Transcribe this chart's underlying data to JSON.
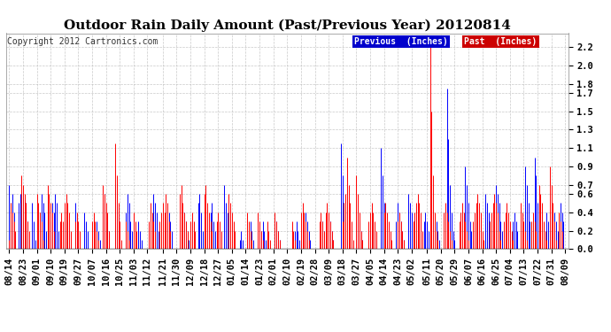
{
  "title": "Outdoor Rain Daily Amount (Past/Previous Year) 20120814",
  "copyright_text": "Copyright 2012 Cartronics.com",
  "legend_previous": "Previous  (Inches)",
  "legend_past": "Past  (Inches)",
  "previous_color": "#0000ff",
  "past_color": "#ff0000",
  "previous_legend_bg": "#0000cc",
  "past_legend_bg": "#cc0000",
  "yticks": [
    0.0,
    0.2,
    0.4,
    0.6,
    0.7,
    0.9,
    1.1,
    1.3,
    1.5,
    1.7,
    1.8,
    2.0,
    2.2
  ],
  "ylim": [
    0.0,
    2.35
  ],
  "background_color": "#ffffff",
  "grid_color": "#bbbbbb",
  "title_fontsize": 11,
  "tick_fontsize": 7.5,
  "x_tick_labels": [
    "08/14",
    "08/23",
    "09/01",
    "09/10",
    "09/19",
    "09/27",
    "10/07",
    "10/16",
    "10/25",
    "11/03",
    "11/12",
    "11/21",
    "11/30",
    "12/09",
    "12/18",
    "12/27",
    "01/05",
    "01/14",
    "01/23",
    "02/01",
    "02/10",
    "02/19",
    "02/28",
    "03/09",
    "03/18",
    "03/27",
    "04/05",
    "04/14",
    "04/23",
    "05/02",
    "05/11",
    "05/20",
    "05/29",
    "06/07",
    "06/16",
    "06/25",
    "07/04",
    "07/13",
    "07/22",
    "07/31",
    "08/09"
  ],
  "prev_rain": [
    0.7,
    0.5,
    0.6,
    0.4,
    0.1,
    0.0,
    0.5,
    0.6,
    0.5,
    0.3,
    0.1,
    0.5,
    0.3,
    0.1,
    0.0,
    0.5,
    0.3,
    0.1,
    0.0,
    0.0,
    0.4,
    0.6,
    0.5,
    0.4,
    0.2,
    0.0,
    0.0,
    0.3,
    0.5,
    0.4,
    0.6,
    0.5,
    0.2,
    0.1,
    0.0,
    0.0,
    0.3,
    0.4,
    0.3,
    0.2,
    0.0,
    0.0,
    0.0,
    0.5,
    0.3,
    0.2,
    0.0,
    0.0,
    0.0,
    0.4,
    0.3,
    0.2,
    0.0,
    0.0,
    0.0,
    0.0,
    0.0,
    0.3,
    0.2,
    0.1,
    0.0,
    0.5,
    0.6,
    0.4,
    0.3,
    0.2,
    0.0,
    0.0,
    0.0,
    0.7,
    0.5,
    0.4,
    0.2,
    0.0,
    0.0,
    0.0,
    0.4,
    0.6,
    0.5,
    0.3,
    0.2,
    0.0,
    0.0,
    0.0,
    0.3,
    0.2,
    0.1,
    0.0,
    0.0,
    0.0,
    0.0,
    0.0,
    0.0,
    0.0,
    0.6,
    0.5,
    0.4,
    0.2,
    0.0,
    0.0,
    0.0,
    0.0,
    0.0,
    0.3,
    0.4,
    0.3,
    0.2,
    0.0,
    0.0,
    0.0,
    0.0,
    0.0,
    0.0,
    0.2,
    0.4,
    0.3,
    0.2,
    0.1,
    0.0,
    0.0,
    0.0,
    0.0,
    0.0,
    0.5,
    0.6,
    0.4,
    0.2,
    0.0,
    0.0,
    0.0,
    0.0,
    0.4,
    0.5,
    0.3,
    0.2,
    0.0,
    0.0,
    0.0,
    0.0,
    0.0,
    0.7,
    0.5,
    0.4,
    0.2,
    0.0,
    0.0,
    0.0,
    0.0,
    0.0,
    0.0,
    0.1,
    0.2,
    0.1,
    0.0,
    0.0,
    0.0,
    0.2,
    0.3,
    0.2,
    0.1,
    0.0,
    0.0,
    0.0,
    0.0,
    0.2,
    0.3,
    0.2,
    0.1,
    0.0,
    0.0,
    0.0,
    0.0,
    0.0,
    0.2,
    0.3,
    0.2,
    0.1,
    0.0,
    0.0,
    0.0,
    0.0,
    0.0,
    0.0,
    0.0,
    0.0,
    0.0,
    0.2,
    0.3,
    0.2,
    0.1,
    0.0,
    0.0,
    0.3,
    0.4,
    0.3,
    0.2,
    0.1,
    0.0,
    0.0,
    0.0,
    0.0,
    0.0,
    0.0,
    0.0,
    0.3,
    0.2,
    0.1,
    0.0,
    0.2,
    0.3,
    0.2,
    0.1,
    0.0,
    0.0,
    0.0,
    0.0,
    1.15,
    0.8,
    0.5,
    0.3,
    0.1,
    0.0,
    0.0,
    0.0,
    0.0,
    0.0,
    0.3,
    0.4,
    0.3,
    0.2,
    0.1,
    0.0,
    0.0,
    0.0,
    0.0,
    0.3,
    0.4,
    0.3,
    0.2,
    0.1,
    0.0,
    0.0,
    1.1,
    0.8,
    0.5,
    0.3,
    0.1,
    0.0,
    0.0,
    0.0,
    0.0,
    0.0,
    0.3,
    0.5,
    0.4,
    0.3,
    0.2,
    0.1,
    0.0,
    0.0,
    0.6,
    0.5,
    0.4,
    0.3,
    0.2,
    0.1,
    0.0,
    0.0,
    0.0,
    0.0,
    0.3,
    0.4,
    0.3,
    0.2,
    0.1,
    0.0,
    0.0,
    0.0,
    0.3,
    0.2,
    0.1,
    0.0,
    0.0,
    0.0,
    0.0,
    1.75,
    1.2,
    0.7,
    0.4,
    0.2,
    0.1,
    0.0,
    0.0,
    0.0,
    0.0,
    0.0,
    0.0,
    0.9,
    0.7,
    0.5,
    0.3,
    0.2,
    0.1,
    0.0,
    0.4,
    0.3,
    0.2,
    0.1,
    0.0,
    0.0,
    0.6,
    0.5,
    0.4,
    0.3,
    0.2,
    0.0,
    0.0,
    0.7,
    0.6,
    0.5,
    0.3,
    0.2,
    0.0,
    0.0,
    0.3,
    0.2,
    0.1,
    0.0,
    0.3,
    0.4,
    0.3,
    0.2,
    0.0,
    0.0,
    0.0,
    0.0,
    0.9,
    0.7,
    0.5,
    0.3,
    0.1,
    0.0,
    1.0,
    0.8,
    0.5,
    0.3,
    0.1,
    0.0,
    0.0,
    0.0,
    0.4,
    0.3,
    0.2,
    0.0,
    0.0,
    0.4,
    0.3,
    0.2,
    0.0,
    0.5,
    0.4,
    0.3,
    0.0
  ],
  "past_rain": [
    0.1,
    0.5,
    0.4,
    0.3,
    0.2,
    0.0,
    0.0,
    0.0,
    0.8,
    0.7,
    0.6,
    0.5,
    0.3,
    0.2,
    0.0,
    0.0,
    0.0,
    0.0,
    0.6,
    0.5,
    0.4,
    0.3,
    0.1,
    0.0,
    0.0,
    0.7,
    0.6,
    0.5,
    0.4,
    0.2,
    0.0,
    0.0,
    0.0,
    0.3,
    0.4,
    0.3,
    0.5,
    0.6,
    0.5,
    0.4,
    0.2,
    0.0,
    0.0,
    0.3,
    0.4,
    0.3,
    0.2,
    0.0,
    0.0,
    0.0,
    0.0,
    0.0,
    0.0,
    0.0,
    0.3,
    0.4,
    0.3,
    0.2,
    0.1,
    0.0,
    0.0,
    0.7,
    0.6,
    0.5,
    0.4,
    0.2,
    0.0,
    0.0,
    0.0,
    1.15,
    0.8,
    0.5,
    0.3,
    0.1,
    0.0,
    0.0,
    0.3,
    0.2,
    0.1,
    0.0,
    0.0,
    0.4,
    0.3,
    0.2,
    0.0,
    0.0,
    0.0,
    0.0,
    0.0,
    0.0,
    0.0,
    0.3,
    0.5,
    0.4,
    0.3,
    0.2,
    0.0,
    0.0,
    0.3,
    0.4,
    0.5,
    0.4,
    0.6,
    0.5,
    0.3,
    0.2,
    0.0,
    0.0,
    0.0,
    0.0,
    0.0,
    0.6,
    0.7,
    0.5,
    0.4,
    0.3,
    0.2,
    0.0,
    0.3,
    0.4,
    0.3,
    0.2,
    0.0,
    0.0,
    0.0,
    0.0,
    0.0,
    0.6,
    0.7,
    0.5,
    0.4,
    0.3,
    0.2,
    0.0,
    0.0,
    0.3,
    0.4,
    0.3,
    0.2,
    0.0,
    0.0,
    0.0,
    0.0,
    0.6,
    0.5,
    0.4,
    0.3,
    0.2,
    0.0,
    0.0,
    0.0,
    0.0,
    0.0,
    0.0,
    0.0,
    0.4,
    0.3,
    0.2,
    0.1,
    0.0,
    0.0,
    0.0,
    0.4,
    0.3,
    0.2,
    0.1,
    0.0,
    0.0,
    0.3,
    0.2,
    0.1,
    0.0,
    0.0,
    0.4,
    0.3,
    0.2,
    0.1,
    0.0,
    0.0,
    0.0,
    0.0,
    0.0,
    0.0,
    0.0,
    0.3,
    0.2,
    0.1,
    0.0,
    0.0,
    0.0,
    0.4,
    0.5,
    0.4,
    0.3,
    0.2,
    0.1,
    0.0,
    0.0,
    0.0,
    0.0,
    0.0,
    0.0,
    0.3,
    0.4,
    0.3,
    0.2,
    0.4,
    0.5,
    0.4,
    0.3,
    0.2,
    0.1,
    0.0,
    0.0,
    0.0,
    0.0,
    0.0,
    0.3,
    0.5,
    0.6,
    1.0,
    0.7,
    0.5,
    0.3,
    0.1,
    0.0,
    0.8,
    0.6,
    0.4,
    0.2,
    0.1,
    0.0,
    0.0,
    0.0,
    0.3,
    0.4,
    0.5,
    0.4,
    0.3,
    0.2,
    0.0,
    0.0,
    0.0,
    0.0,
    0.4,
    0.5,
    0.4,
    0.3,
    0.2,
    0.1,
    0.0,
    0.0,
    0.0,
    0.3,
    0.4,
    0.3,
    0.2,
    0.1,
    0.0,
    0.0,
    0.0,
    0.0,
    0.0,
    0.3,
    0.4,
    0.5,
    0.6,
    0.5,
    0.4,
    0.2,
    0.0,
    0.0,
    0.0,
    0.0,
    2.2,
    1.5,
    0.8,
    0.4,
    0.2,
    0.1,
    0.0,
    0.0,
    0.0,
    0.4,
    0.5,
    0.4,
    0.3,
    0.2,
    0.1,
    0.0,
    0.0,
    0.0,
    0.0,
    0.3,
    0.4,
    0.5,
    0.4,
    0.3,
    0.2,
    0.1,
    0.0,
    0.0,
    0.3,
    0.4,
    0.5,
    0.6,
    0.5,
    0.4,
    0.2,
    0.1,
    0.0,
    0.0,
    0.0,
    0.3,
    0.4,
    0.5,
    0.6,
    0.5,
    0.4,
    0.2,
    0.1,
    0.0,
    0.3,
    0.4,
    0.5,
    0.4,
    0.3,
    0.2,
    0.1,
    0.0,
    0.0,
    0.0,
    0.0,
    0.5,
    0.4,
    0.3,
    0.2,
    0.1,
    0.0,
    0.0,
    0.3,
    0.4,
    0.3,
    0.2,
    0.0,
    0.7,
    0.6,
    0.5,
    0.3,
    0.2,
    0.1,
    0.0,
    0.9,
    0.7,
    0.5,
    0.3,
    0.1,
    0.0,
    0.4,
    0.3,
    0.2,
    0.0,
    0.0
  ]
}
